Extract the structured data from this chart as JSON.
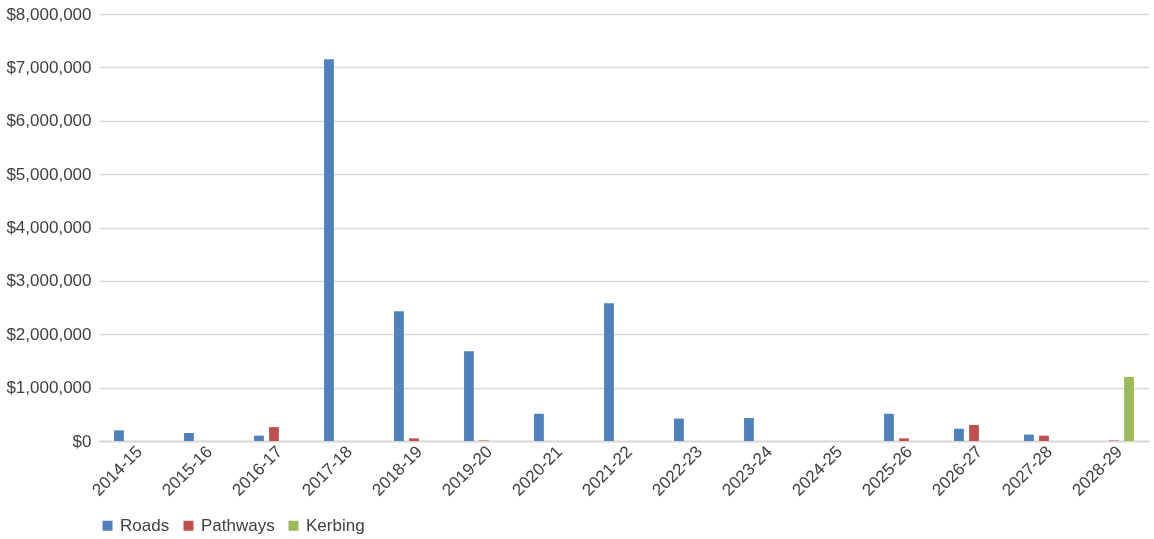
{
  "chart_data": {
    "type": "bar",
    "categories": [
      "2014-15",
      "2015-16",
      "2016-17",
      "2017-18",
      "2018-19",
      "2019-20",
      "2020-21",
      "2021-22",
      "2022-23",
      "2023-24",
      "2024-25",
      "2025-26",
      "2026-27",
      "2027-28",
      "2028-29"
    ],
    "series": [
      {
        "name": "Roads",
        "color": "#4f81bd",
        "values": [
          200000,
          150000,
          100000,
          7150000,
          2430000,
          1680000,
          510000,
          2580000,
          420000,
          430000,
          0,
          510000,
          230000,
          120000,
          0
        ]
      },
      {
        "name": "Pathways",
        "color": "#c0504d",
        "values": [
          0,
          0,
          260000,
          0,
          50000,
          10000,
          0,
          0,
          0,
          0,
          0,
          50000,
          300000,
          100000,
          10000
        ]
      },
      {
        "name": "Kerbing",
        "color": "#9bbb59",
        "values": [
          0,
          0,
          0,
          0,
          0,
          0,
          0,
          0,
          0,
          0,
          0,
          0,
          0,
          0,
          1200000
        ]
      }
    ],
    "ylim": [
      0,
      8000000
    ],
    "yticks": [
      {
        "value": 0,
        "label": "$0"
      },
      {
        "value": 1000000,
        "label": "$1,000,000"
      },
      {
        "value": 2000000,
        "label": "$2,000,000"
      },
      {
        "value": 3000000,
        "label": "$3,000,000"
      },
      {
        "value": 4000000,
        "label": "$4,000,000"
      },
      {
        "value": 5000000,
        "label": "$5,000,000"
      },
      {
        "value": 6000000,
        "label": "$6,000,000"
      },
      {
        "value": 7000000,
        "label": "$7,000,000"
      },
      {
        "value": 8000000,
        "label": "$8,000,000"
      }
    ],
    "grid": "y",
    "legend": "bottom"
  }
}
